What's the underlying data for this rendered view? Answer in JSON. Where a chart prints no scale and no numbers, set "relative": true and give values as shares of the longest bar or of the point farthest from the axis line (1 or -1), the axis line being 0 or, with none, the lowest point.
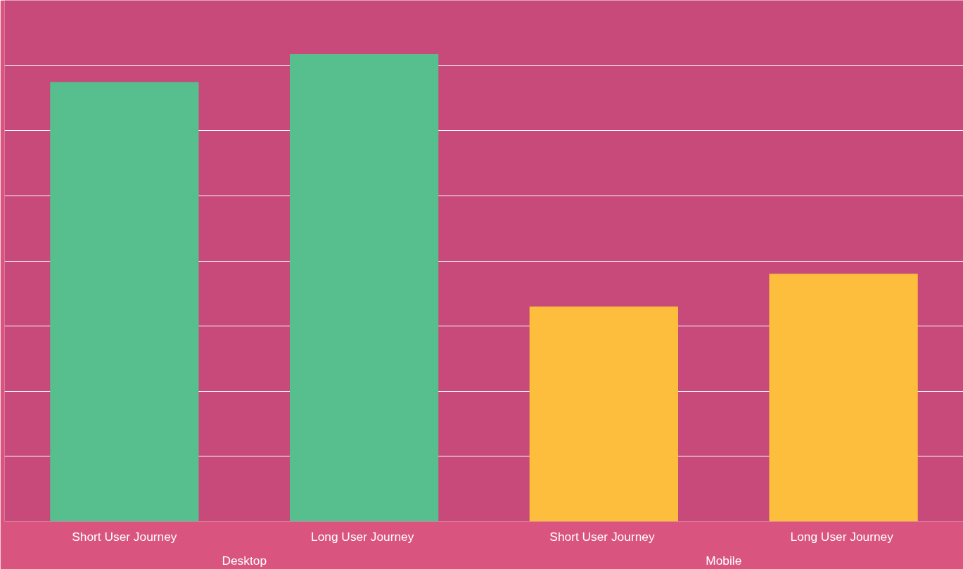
{
  "chart_data": {
    "type": "bar",
    "relative": true,
    "grid": "y",
    "categories": [
      "Short User Journey",
      "Long  User Journey",
      "Short  User Journey",
      "Long  User Journey"
    ],
    "series": [
      {
        "color": "#57be8e",
        "values": [
          0.94,
          1,
          null,
          null
        ]
      },
      {
        "color": "#fdbe3d",
        "values": [
          null,
          null,
          0.46,
          0.53
        ]
      }
    ],
    "annotations": [
      "Desktop",
      "Mobile"
    ]
  }
}
